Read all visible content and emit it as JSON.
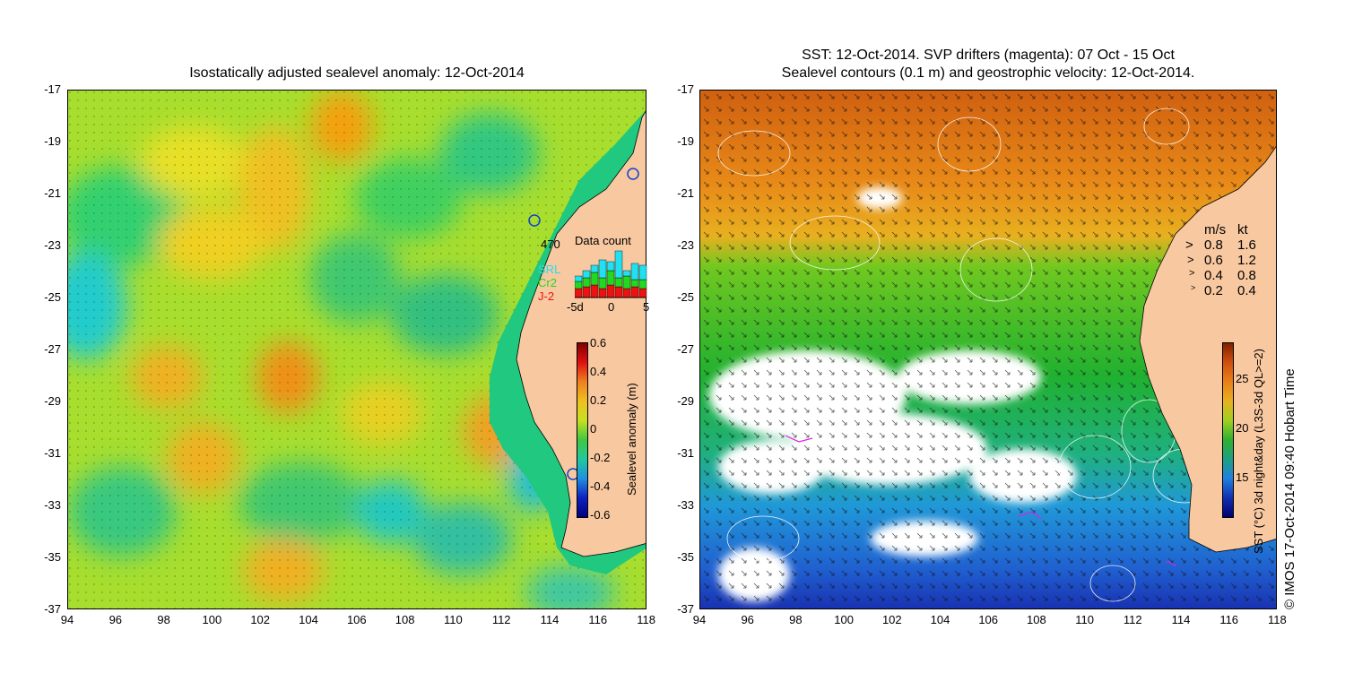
{
  "left_panel": {
    "title": "Isostatically adjusted sealevel anomaly: 12-Oct-2014",
    "y_ticks": [
      "-17",
      "-19",
      "-21",
      "-23",
      "-25",
      "-27",
      "-29",
      "-31",
      "-33",
      "-35",
      "-37"
    ],
    "x_ticks": [
      "94",
      "96",
      "98",
      "100",
      "102",
      "104",
      "106",
      "108",
      "110",
      "112",
      "114",
      "116",
      "118"
    ],
    "data_count": {
      "title": "Data count",
      "max_label": "470",
      "legend": [
        {
          "name": "SRL",
          "color": "#22e0f0"
        },
        {
          "name": "Cr2",
          "color": "#22d822"
        },
        {
          "name": "J-2",
          "color": "#ee1111"
        }
      ],
      "x_ticks": [
        "-5d",
        "0",
        "5"
      ]
    },
    "colorbar": {
      "title": "Sealevel anomaly (m)",
      "ticks": [
        "0.6",
        "0.4",
        "0.2",
        "0",
        "-0.2",
        "-0.4",
        "-0.6"
      ]
    },
    "colors": {
      "land": "#f8c8a0",
      "ocean_mid": "#a8e030",
      "low": "#22d0d0",
      "high": "#f8a010"
    }
  },
  "right_panel": {
    "title_line1": "SST: 12-Oct-2014. SVP drifters (magenta): 07 Oct - 15 Oct",
    "title_line2": "Sealevel contours (0.1 m) and geostrophic velocity: 12-Oct-2014.",
    "y_ticks": [
      "-17",
      "-19",
      "-21",
      "-23",
      "-25",
      "-27",
      "-29",
      "-31",
      "-33",
      "-35",
      "-37"
    ],
    "x_ticks": [
      "94",
      "96",
      "98",
      "100",
      "102",
      "104",
      "106",
      "108",
      "110",
      "112",
      "114",
      "116",
      "118"
    ],
    "velocity_legend": {
      "header_ms": "m/s",
      "header_kt": "kt",
      "rows": [
        {
          "ms": "0.8",
          "kt": "1.6"
        },
        {
          "ms": "0.6",
          "kt": "1.2"
        },
        {
          "ms": "0.4",
          "kt": "0.8"
        },
        {
          "ms": "0.2",
          "kt": "0.4"
        }
      ]
    },
    "colorbar": {
      "title": "SST (°C) 3d night&day (L3S-3d QL>=2)",
      "ticks": [
        "25",
        "20",
        "15"
      ]
    },
    "credit": "© IMOS 17-Oct-2014 09:40 Hobart Time",
    "colors": {
      "land": "#f8c8a0",
      "warm": "#d86810",
      "mid": "#22b022",
      "cool": "#2090e0",
      "cloud": "#ffffff"
    }
  }
}
